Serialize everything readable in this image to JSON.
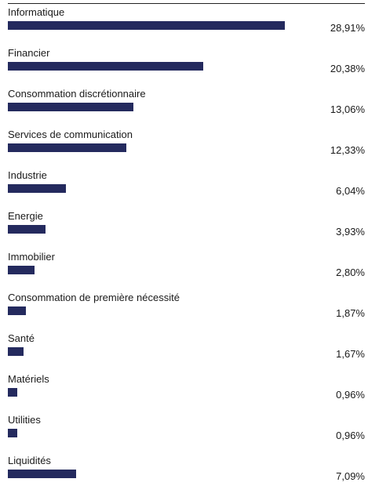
{
  "chart_data": {
    "type": "bar",
    "orientation": "horizontal",
    "categories": [
      "Informatique",
      "Financier",
      "Consommation discrétionnaire",
      "Services de communication",
      "Industrie",
      "Energie",
      "Immobilier",
      "Consommation de première nécessité",
      "Santé",
      "Matériels",
      "Utilities",
      "Liquidités"
    ],
    "values": [
      28.91,
      20.38,
      13.06,
      12.33,
      6.04,
      3.93,
      2.8,
      1.87,
      1.67,
      0.96,
      0.96,
      7.09
    ],
    "value_labels": [
      "28,91%",
      "20,38%",
      "13,06%",
      "12,33%",
      "6,04%",
      "3,93%",
      "2,80%",
      "1,87%",
      "1,67%",
      "0,96%",
      "0,96%",
      "7,09%"
    ],
    "xlim": [
      0,
      37.25
    ],
    "unit": "%",
    "bar_color": "#242a5e",
    "grid": false
  }
}
